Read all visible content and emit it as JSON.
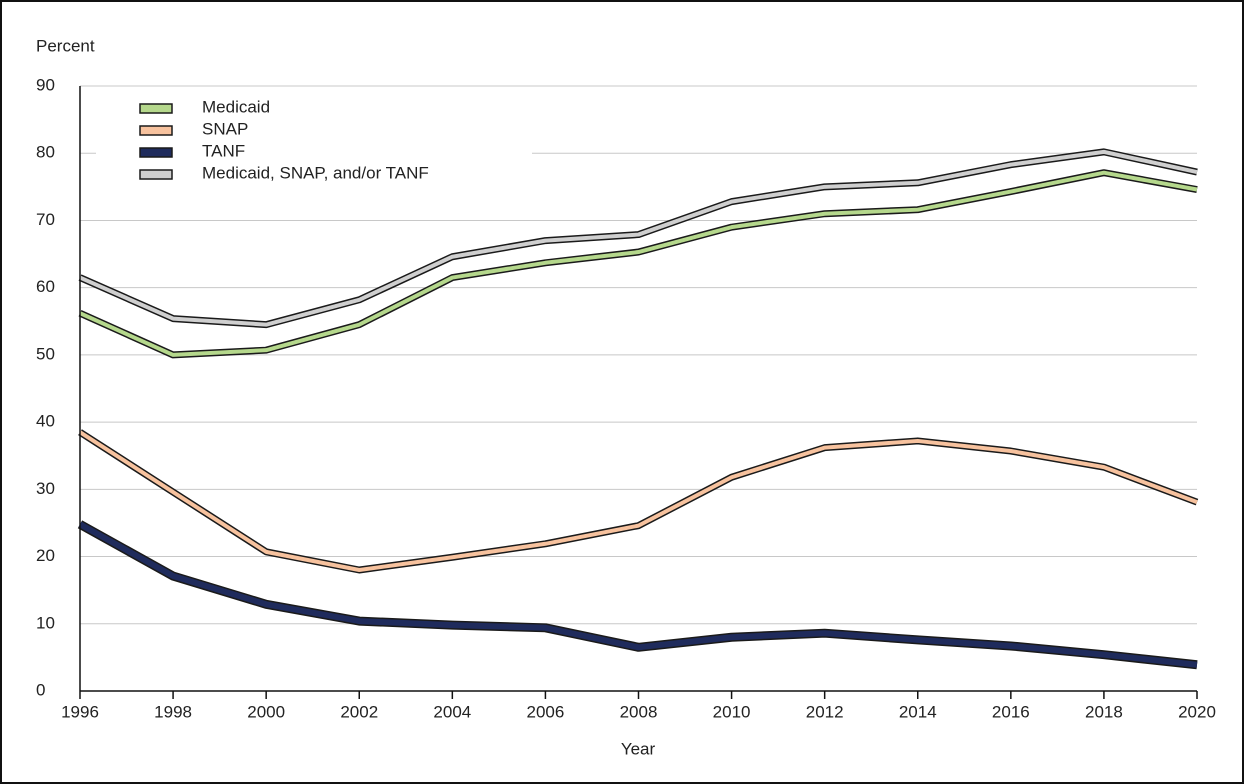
{
  "chart_data": {
    "type": "line",
    "y_label": "Percent",
    "x_label": "Year",
    "x": [
      1996,
      1998,
      2000,
      2002,
      2004,
      2006,
      2008,
      2010,
      2012,
      2014,
      2016,
      2018,
      2020
    ],
    "xlim": [
      1996,
      2020
    ],
    "xticks": [
      1996,
      1998,
      2000,
      2002,
      2004,
      2006,
      2008,
      2010,
      2012,
      2014,
      2016,
      2018,
      2020
    ],
    "ylim": [
      0,
      90
    ],
    "yticks": [
      0,
      10,
      20,
      30,
      40,
      50,
      60,
      70,
      80,
      90
    ],
    "grid": true,
    "legend": "upper-left",
    "series": [
      {
        "name": "Medicaid",
        "color": "#b5d88c",
        "values": [
          56.2,
          50,
          50.7,
          54.5,
          61.5,
          63.7,
          65.3,
          69,
          71,
          71.6,
          74.3,
          77.1,
          74.6
        ]
      },
      {
        "name": "SNAP",
        "color": "#f7c29e",
        "values": [
          38.5,
          29.6,
          20.7,
          18,
          19.9,
          21.9,
          24.6,
          31.8,
          36.2,
          37.2,
          35.7,
          33.3,
          28.1
        ]
      },
      {
        "name": "TANF",
        "color": "#1f2b5c",
        "values": [
          24.8,
          17.1,
          12.9,
          10.4,
          9.8,
          9.4,
          6.5,
          8,
          8.6,
          7.6,
          6.7,
          5.4,
          3.9
        ]
      },
      {
        "name": "Medicaid, SNAP, and/or TANF",
        "color": "#cfcfcf",
        "values": [
          61.5,
          55.4,
          54.5,
          58.2,
          64.6,
          67,
          67.9,
          72.8,
          75,
          75.6,
          78.3,
          80.2,
          77.2
        ]
      }
    ]
  }
}
